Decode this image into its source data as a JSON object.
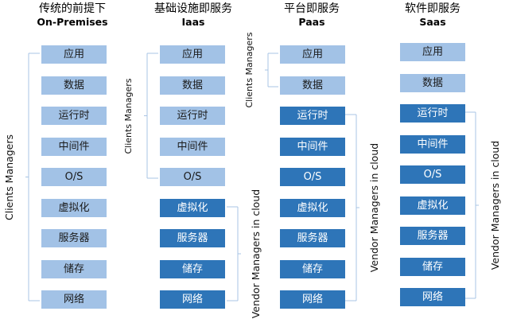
{
  "layer_names": [
    "应用",
    "数据",
    "运行时",
    "中间件",
    "O/S",
    "虚拟化",
    "服务器",
    "储存",
    "网络"
  ],
  "columns": [
    {
      "title_zh": "传统的前提下",
      "title_en": "On-Premises",
      "client_layers": 9,
      "client_label": "Clients Managers",
      "vendor_label": ""
    },
    {
      "title_zh": "基础设施即服务",
      "title_en": "Iaas",
      "client_layers": 5,
      "client_label": "Clients Managers",
      "vendor_label": "Vendor Managers in cloud"
    },
    {
      "title_zh": "平台即服务",
      "title_en": "Paas",
      "client_layers": 2,
      "client_label": "Clients Managers",
      "vendor_label": "Vendor Managers in cloud"
    },
    {
      "title_zh": "软件即服务",
      "title_en": "Saas",
      "client_layers": 2,
      "client_label": "",
      "vendor_label": "Vendor Managers in cloud"
    }
  ],
  "colors": {
    "client": "#a2c2e6",
    "vendor": "#2e75b8",
    "bracket": "#a8c4e4"
  }
}
